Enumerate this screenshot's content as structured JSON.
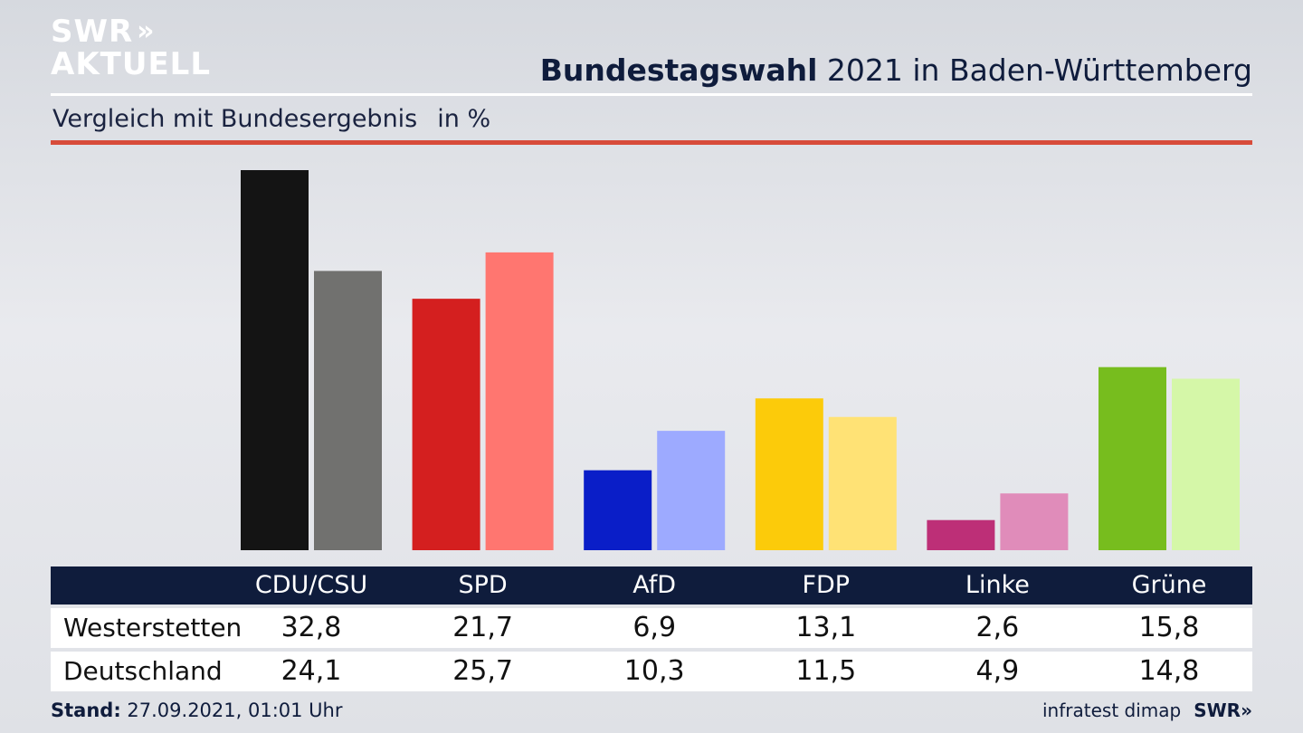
{
  "brand": {
    "logo_line1": "SWR",
    "logo_arrows": "»",
    "logo_line2": "AKTUELL",
    "small_logo": "SWR»"
  },
  "header": {
    "title_bold": "Bundestagswahl",
    "title_rest": " 2021 in Baden-Württemberg",
    "subtitle": "Vergleich mit Bundesergebnis",
    "unit": "in %"
  },
  "colors": {
    "accent_rule": "#d74b3a",
    "navy": "#0f1c3c"
  },
  "chart_data": {
    "type": "bar",
    "categories": [
      "CDU/CSU",
      "SPD",
      "AfD",
      "FDP",
      "Linke",
      "Grüne"
    ],
    "series": [
      {
        "name": "Westerstetten",
        "values": [
          32.8,
          21.7,
          6.9,
          13.1,
          2.6,
          15.8
        ],
        "colors": [
          "#141414",
          "#d41f1f",
          "#0a1ec8",
          "#fccb0a",
          "#bd2f77",
          "#77bd1e"
        ]
      },
      {
        "name": "Deutschland",
        "values": [
          24.1,
          25.7,
          10.3,
          11.5,
          4.9,
          14.8
        ],
        "colors": [
          "#71716f",
          "#ff7670",
          "#9daaff",
          "#ffe275",
          "#e08cba",
          "#d5f7a8"
        ]
      }
    ],
    "ylim": [
      0,
      32.8
    ],
    "grid": false,
    "legend": "table-below"
  },
  "table": {
    "rows": [
      {
        "label": "Westerstetten",
        "values": [
          "32,8",
          "21,7",
          "6,9",
          "13,1",
          "2,6",
          "15,8"
        ]
      },
      {
        "label": "Deutschland",
        "values": [
          "24,1",
          "25,7",
          "10,3",
          "11,5",
          "4,9",
          "14,8"
        ]
      }
    ]
  },
  "footer": {
    "stand_label": "Stand:",
    "stand_value": " 27.09.2021, 01:01 Uhr",
    "source": "infratest dimap"
  }
}
